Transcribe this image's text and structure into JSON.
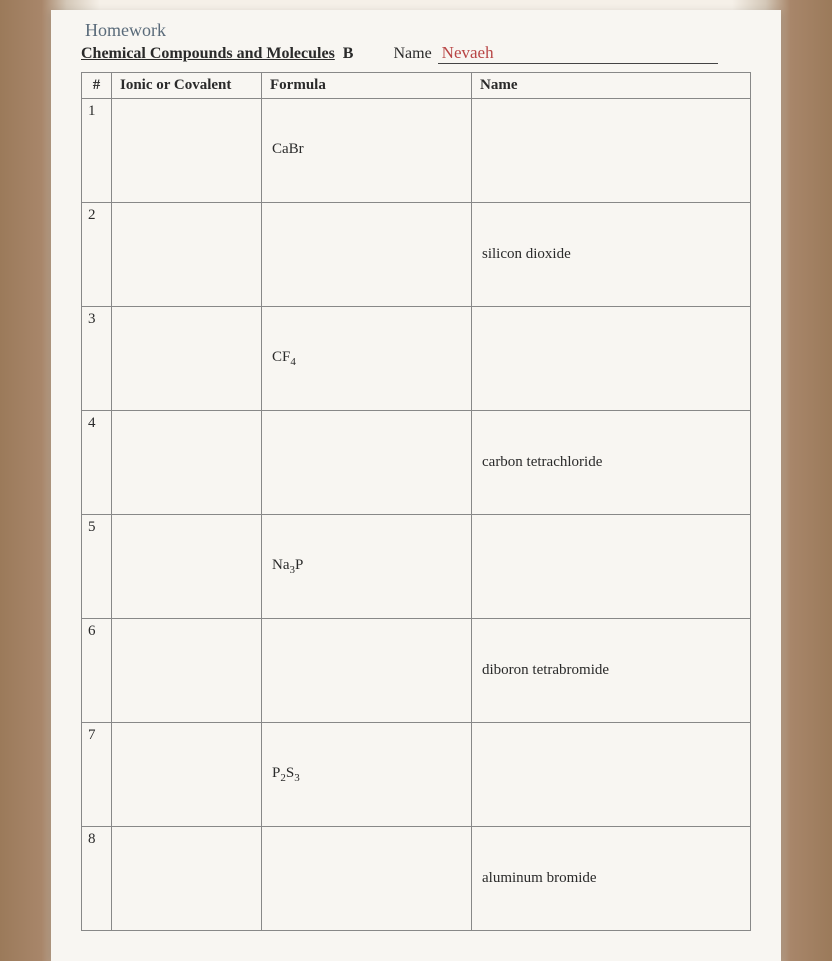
{
  "header": {
    "homework_label": "Homework",
    "title": "Chemical Compounds and Molecules",
    "title_suffix": "B",
    "name_label": "Name",
    "student_name": "Nevaeh"
  },
  "table": {
    "columns": {
      "num": "#",
      "type": "Ionic or Covalent",
      "formula": "Formula",
      "name": "Name"
    },
    "rows": [
      {
        "num": "1",
        "type": "",
        "formula_base": "CaBr",
        "formula_sub": "",
        "name": ""
      },
      {
        "num": "2",
        "type": "",
        "formula_base": "",
        "formula_sub": "",
        "name": "silicon dioxide"
      },
      {
        "num": "3",
        "type": "",
        "formula_base": "CF",
        "formula_sub": "4",
        "name": ""
      },
      {
        "num": "4",
        "type": "",
        "formula_base": "",
        "formula_sub": "",
        "name": "carbon tetrachloride"
      },
      {
        "num": "5",
        "type": "",
        "formula_base": "Na",
        "formula_sub": "3",
        "formula_tail": "P",
        "name": ""
      },
      {
        "num": "6",
        "type": "",
        "formula_base": "",
        "formula_sub": "",
        "name": "diboron tetrabromide"
      },
      {
        "num": "7",
        "type": "",
        "formula_base": "P",
        "formula_sub": "2",
        "formula_mid": "S",
        "formula_sub2": "3",
        "name": ""
      },
      {
        "num": "8",
        "type": "",
        "formula_base": "",
        "formula_sub": "",
        "name": "aluminum bromide"
      }
    ]
  }
}
